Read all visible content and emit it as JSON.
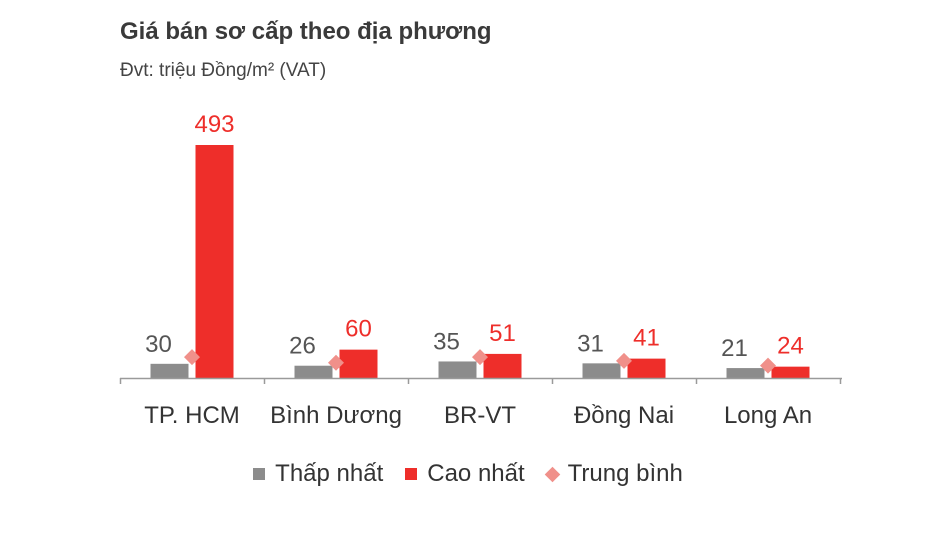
{
  "chart_data": {
    "type": "bar",
    "title": "Giá bán sơ cấp theo địa phương",
    "subtitle": "Đvt: triệu Đồng/m² (VAT)",
    "categories": [
      "TP. HCM",
      "Bình Dương",
      "BR-VT",
      "Đồng Nai",
      "Long An"
    ],
    "series": [
      {
        "name": "Thấp nhất",
        "values": [
          30,
          26,
          35,
          31,
          21
        ],
        "color": "#8c8c8c",
        "labels": [
          "30",
          "26",
          "35",
          "31",
          "21"
        ]
      },
      {
        "name": "Cao nhất",
        "values": [
          493,
          60,
          51,
          41,
          24
        ],
        "color": "#ee2e2a",
        "labels": [
          "493",
          "60",
          "51",
          "41",
          "24"
        ]
      },
      {
        "name": "Trung bình",
        "values": [
          40,
          28,
          40,
          32,
          22
        ],
        "color": "#f0908a",
        "marker": "diamond"
      }
    ],
    "ylim": [
      0,
      493
    ],
    "grid": false,
    "legend": "bottom"
  }
}
